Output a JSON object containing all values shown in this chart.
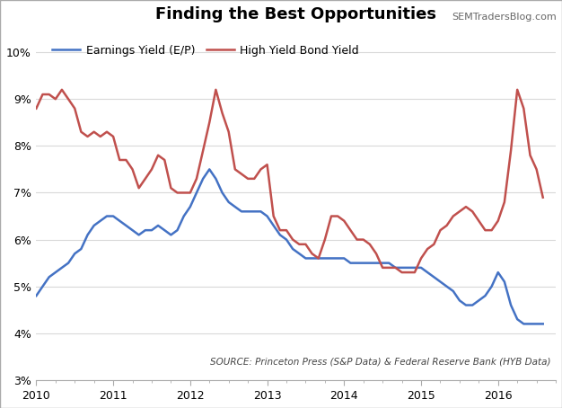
{
  "title": "Finding the Best Opportunities",
  "source_text": "SOURCE: Princeton Press (S&P Data) & Federal Reserve Bank (HYB Data)",
  "watermark": "SEMTradersBlog.com",
  "legend_earnings": "Earnings Yield (E/P)",
  "legend_hyb": "High Yield Bond Yield",
  "color_earnings": "#4472C4",
  "color_hyb": "#C0504D",
  "ylim": [
    0.03,
    0.105
  ],
  "yticks": [
    0.03,
    0.04,
    0.05,
    0.06,
    0.07,
    0.08,
    0.09,
    0.1
  ],
  "background_color": "#FFFFFF",
  "grid_color": "#D9D9D9",
  "border_color": "#AAAAAA",
  "earnings_yield": {
    "x": [
      2010.0,
      2010.083,
      2010.167,
      2010.25,
      2010.333,
      2010.417,
      2010.5,
      2010.583,
      2010.667,
      2010.75,
      2010.833,
      2010.917,
      2011.0,
      2011.083,
      2011.167,
      2011.25,
      2011.333,
      2011.417,
      2011.5,
      2011.583,
      2011.667,
      2011.75,
      2011.833,
      2011.917,
      2012.0,
      2012.083,
      2012.167,
      2012.25,
      2012.333,
      2012.417,
      2012.5,
      2012.583,
      2012.667,
      2012.75,
      2012.833,
      2012.917,
      2013.0,
      2013.083,
      2013.167,
      2013.25,
      2013.333,
      2013.417,
      2013.5,
      2013.583,
      2013.667,
      2013.75,
      2013.833,
      2013.917,
      2014.0,
      2014.083,
      2014.167,
      2014.25,
      2014.333,
      2014.417,
      2014.5,
      2014.583,
      2014.667,
      2014.75,
      2014.833,
      2014.917,
      2015.0,
      2015.083,
      2015.167,
      2015.25,
      2015.333,
      2015.417,
      2015.5,
      2015.583,
      2015.667,
      2015.75,
      2015.833,
      2015.917,
      2016.0,
      2016.083,
      2016.167,
      2016.25,
      2016.333,
      2016.417,
      2016.5,
      2016.583
    ],
    "y": [
      0.048,
      0.05,
      0.052,
      0.053,
      0.054,
      0.055,
      0.057,
      0.058,
      0.061,
      0.063,
      0.064,
      0.065,
      0.065,
      0.064,
      0.063,
      0.062,
      0.061,
      0.062,
      0.062,
      0.063,
      0.062,
      0.061,
      0.062,
      0.065,
      0.067,
      0.07,
      0.073,
      0.075,
      0.073,
      0.07,
      0.068,
      0.067,
      0.066,
      0.066,
      0.066,
      0.066,
      0.065,
      0.063,
      0.061,
      0.06,
      0.058,
      0.057,
      0.056,
      0.056,
      0.056,
      0.056,
      0.056,
      0.056,
      0.056,
      0.055,
      0.055,
      0.055,
      0.055,
      0.055,
      0.055,
      0.055,
      0.054,
      0.054,
      0.054,
      0.054,
      0.054,
      0.053,
      0.052,
      0.051,
      0.05,
      0.049,
      0.047,
      0.046,
      0.046,
      0.047,
      0.048,
      0.05,
      0.053,
      0.051,
      0.046,
      0.043,
      0.042,
      0.042,
      0.042,
      0.042
    ]
  },
  "hyb_yield": {
    "x": [
      2010.0,
      2010.083,
      2010.167,
      2010.25,
      2010.333,
      2010.417,
      2010.5,
      2010.583,
      2010.667,
      2010.75,
      2010.833,
      2010.917,
      2011.0,
      2011.083,
      2011.167,
      2011.25,
      2011.333,
      2011.417,
      2011.5,
      2011.583,
      2011.667,
      2011.75,
      2011.833,
      2011.917,
      2012.0,
      2012.083,
      2012.167,
      2012.25,
      2012.333,
      2012.417,
      2012.5,
      2012.583,
      2012.667,
      2012.75,
      2012.833,
      2012.917,
      2013.0,
      2013.083,
      2013.167,
      2013.25,
      2013.333,
      2013.417,
      2013.5,
      2013.583,
      2013.667,
      2013.75,
      2013.833,
      2013.917,
      2014.0,
      2014.083,
      2014.167,
      2014.25,
      2014.333,
      2014.417,
      2014.5,
      2014.583,
      2014.667,
      2014.75,
      2014.833,
      2014.917,
      2015.0,
      2015.083,
      2015.167,
      2015.25,
      2015.333,
      2015.417,
      2015.5,
      2015.583,
      2015.667,
      2015.75,
      2015.833,
      2015.917,
      2016.0,
      2016.083,
      2016.167,
      2016.25,
      2016.333,
      2016.417,
      2016.5,
      2016.583
    ],
    "y": [
      0.088,
      0.091,
      0.091,
      0.09,
      0.092,
      0.09,
      0.088,
      0.083,
      0.082,
      0.083,
      0.082,
      0.083,
      0.082,
      0.077,
      0.077,
      0.075,
      0.071,
      0.073,
      0.075,
      0.078,
      0.077,
      0.071,
      0.07,
      0.07,
      0.07,
      0.073,
      0.079,
      0.085,
      0.092,
      0.087,
      0.083,
      0.075,
      0.074,
      0.073,
      0.073,
      0.075,
      0.076,
      0.065,
      0.062,
      0.062,
      0.06,
      0.059,
      0.059,
      0.057,
      0.056,
      0.06,
      0.065,
      0.065,
      0.064,
      0.062,
      0.06,
      0.06,
      0.059,
      0.057,
      0.054,
      0.054,
      0.054,
      0.053,
      0.053,
      0.053,
      0.056,
      0.058,
      0.059,
      0.062,
      0.063,
      0.065,
      0.066,
      0.067,
      0.066,
      0.064,
      0.062,
      0.062,
      0.064,
      0.068,
      0.079,
      0.092,
      0.088,
      0.078,
      0.075,
      0.069
    ]
  }
}
